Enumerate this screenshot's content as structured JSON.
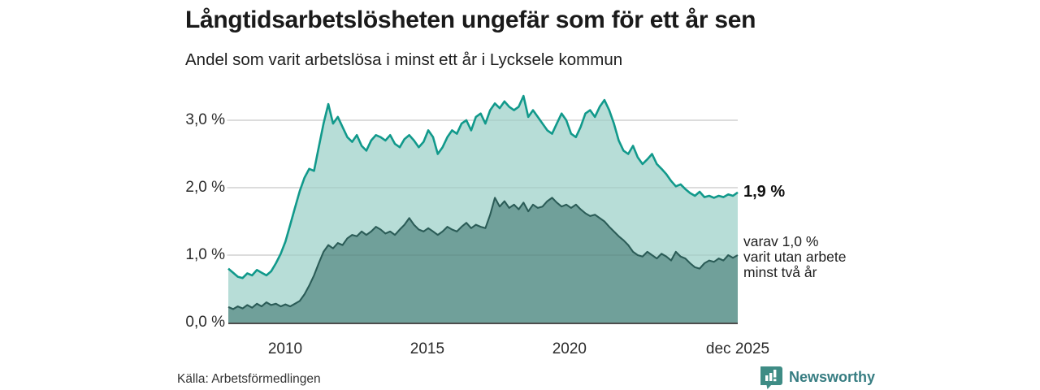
{
  "header": {
    "title": "Långtidsarbetslösheten ungefär som för ett år sen",
    "subtitle": "Andel som varit arbetslösa i minst ett år i Lycksele kommun"
  },
  "annotations": {
    "total_label": "1,9 %",
    "two_year_lines": [
      "varav 1,0 %",
      "varit utan arbete",
      "minst två år"
    ]
  },
  "source": "Källa: Arbetsförmedlingen",
  "branding": {
    "name": "Newsworthy",
    "icon": "bar-chart-badge-icon",
    "badge_color": "#3e8c85",
    "text_color": "#377d82"
  },
  "chart_data": {
    "type": "area",
    "title": "Långtidsarbetslösheten ungefär som för ett år sen",
    "subtitle": "Andel som varit arbetslösa i minst ett år i Lycksele kommun",
    "unit": "%",
    "x_range": [
      2008.0,
      2025.92
    ],
    "x_step_years": 0.1667,
    "ylim": [
      0.0,
      3.6
    ],
    "grid": true,
    "x_ticks": [
      {
        "year": 2010.0,
        "label": "2010"
      },
      {
        "year": 2015.0,
        "label": "2015"
      },
      {
        "year": 2020.0,
        "label": "2020"
      },
      {
        "year": 2025.92,
        "label": "dec 2025"
      }
    ],
    "y_ticks": [
      {
        "value": 0.0,
        "label": "0,0 %"
      },
      {
        "value": 1.0,
        "label": "1,0 %"
      },
      {
        "value": 2.0,
        "label": "2,0 %"
      },
      {
        "value": 3.0,
        "label": "3,0 %"
      }
    ],
    "colors": {
      "grid": "#d8d8d8",
      "grid_overlay": "rgba(0,0,0,0.08)",
      "axis": "#4d4d4d"
    },
    "series": [
      {
        "name": "Andel arbetslösa minst ett år",
        "line_color": "#11998b",
        "fill_color": "#b7ddd7",
        "line_width": 2.6,
        "latest_value": 1.9,
        "values": [
          0.8,
          0.74,
          0.68,
          0.66,
          0.73,
          0.7,
          0.78,
          0.74,
          0.7,
          0.76,
          0.88,
          1.02,
          1.2,
          1.45,
          1.7,
          1.95,
          2.15,
          2.28,
          2.25,
          2.6,
          2.95,
          3.24,
          2.95,
          3.05,
          2.9,
          2.75,
          2.68,
          2.78,
          2.62,
          2.55,
          2.7,
          2.78,
          2.75,
          2.7,
          2.78,
          2.65,
          2.6,
          2.72,
          2.78,
          2.7,
          2.6,
          2.68,
          2.85,
          2.75,
          2.5,
          2.6,
          2.75,
          2.85,
          2.8,
          2.95,
          3.0,
          2.85,
          3.05,
          3.1,
          2.95,
          3.15,
          3.25,
          3.18,
          3.28,
          3.2,
          3.15,
          3.2,
          3.36,
          3.05,
          3.15,
          3.05,
          2.95,
          2.85,
          2.8,
          2.95,
          3.1,
          3.0,
          2.8,
          2.75,
          2.9,
          3.1,
          3.15,
          3.05,
          3.2,
          3.3,
          3.15,
          2.95,
          2.7,
          2.55,
          2.5,
          2.62,
          2.45,
          2.35,
          2.42,
          2.5,
          2.35,
          2.28,
          2.2,
          2.1,
          2.02,
          2.05,
          1.98,
          1.92,
          1.88,
          1.94,
          1.86,
          1.88,
          1.85,
          1.88,
          1.86,
          1.9,
          1.88,
          1.93
        ]
      },
      {
        "name": "varav utan arbete minst två år",
        "line_color": "#2b5c57",
        "fill_color": "#70a09a",
        "line_width": 2.1,
        "latest_value": 1.0,
        "values": [
          0.23,
          0.2,
          0.24,
          0.21,
          0.26,
          0.22,
          0.28,
          0.24,
          0.3,
          0.26,
          0.28,
          0.24,
          0.27,
          0.24,
          0.28,
          0.32,
          0.42,
          0.55,
          0.7,
          0.88,
          1.05,
          1.15,
          1.1,
          1.18,
          1.15,
          1.25,
          1.3,
          1.28,
          1.35,
          1.3,
          1.35,
          1.42,
          1.38,
          1.32,
          1.35,
          1.3,
          1.38,
          1.45,
          1.55,
          1.45,
          1.38,
          1.35,
          1.4,
          1.35,
          1.3,
          1.35,
          1.42,
          1.38,
          1.35,
          1.42,
          1.48,
          1.4,
          1.45,
          1.42,
          1.4,
          1.6,
          1.85,
          1.72,
          1.8,
          1.7,
          1.75,
          1.68,
          1.78,
          1.65,
          1.75,
          1.7,
          1.72,
          1.8,
          1.85,
          1.78,
          1.72,
          1.75,
          1.7,
          1.75,
          1.68,
          1.62,
          1.58,
          1.6,
          1.55,
          1.5,
          1.42,
          1.35,
          1.28,
          1.22,
          1.15,
          1.05,
          1.0,
          0.98,
          1.05,
          1.0,
          0.95,
          1.02,
          0.98,
          0.92,
          1.05,
          0.98,
          0.95,
          0.88,
          0.82,
          0.8,
          0.88,
          0.92,
          0.9,
          0.95,
          0.92,
          1.0,
          0.96,
          1.0
        ]
      }
    ],
    "annotations": [
      {
        "text": "1,9 %",
        "series": 0,
        "bold": true
      },
      {
        "text": "varav 1,0 % varit utan arbete minst två år",
        "series": 1,
        "bold": false
      }
    ],
    "legend_position": "right-annotations"
  }
}
